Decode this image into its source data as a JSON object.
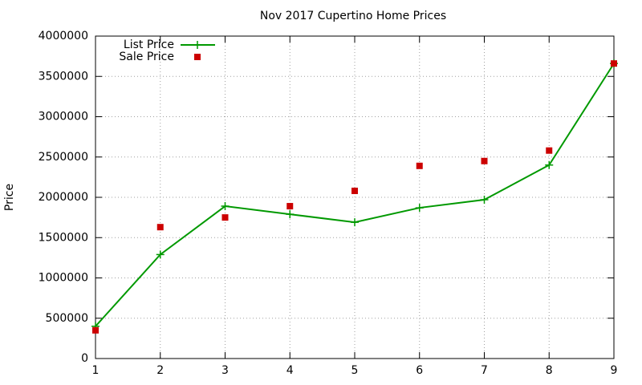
{
  "chart_data": {
    "type": "line",
    "title": "Nov 2017 Cupertino Home Prices",
    "y_label": "Price",
    "x": [
      1,
      2,
      3,
      4,
      5,
      6,
      7,
      8,
      9
    ],
    "xlim": [
      1,
      9
    ],
    "xticks": [
      1,
      2,
      3,
      4,
      5,
      6,
      7,
      8,
      9
    ],
    "ylim": [
      0,
      4000000
    ],
    "yticks": [
      0,
      500000,
      1000000,
      1500000,
      2000000,
      2500000,
      3000000,
      3500000,
      4000000
    ],
    "grid": true,
    "legend": "top-left",
    "series": [
      {
        "name": "List Price",
        "color": "#009900",
        "mode": "lines+markers",
        "marker": "plus",
        "values": [
          400000,
          1290000,
          1890000,
          1790000,
          1690000,
          1870000,
          1970000,
          2400000,
          3660000
        ]
      },
      {
        "name": "Sale Price",
        "color": "#cc0000",
        "mode": "markers",
        "marker": "square",
        "values": [
          350000,
          1630000,
          1750000,
          1890000,
          2080000,
          2390000,
          2450000,
          2580000,
          3660000
        ]
      }
    ]
  }
}
